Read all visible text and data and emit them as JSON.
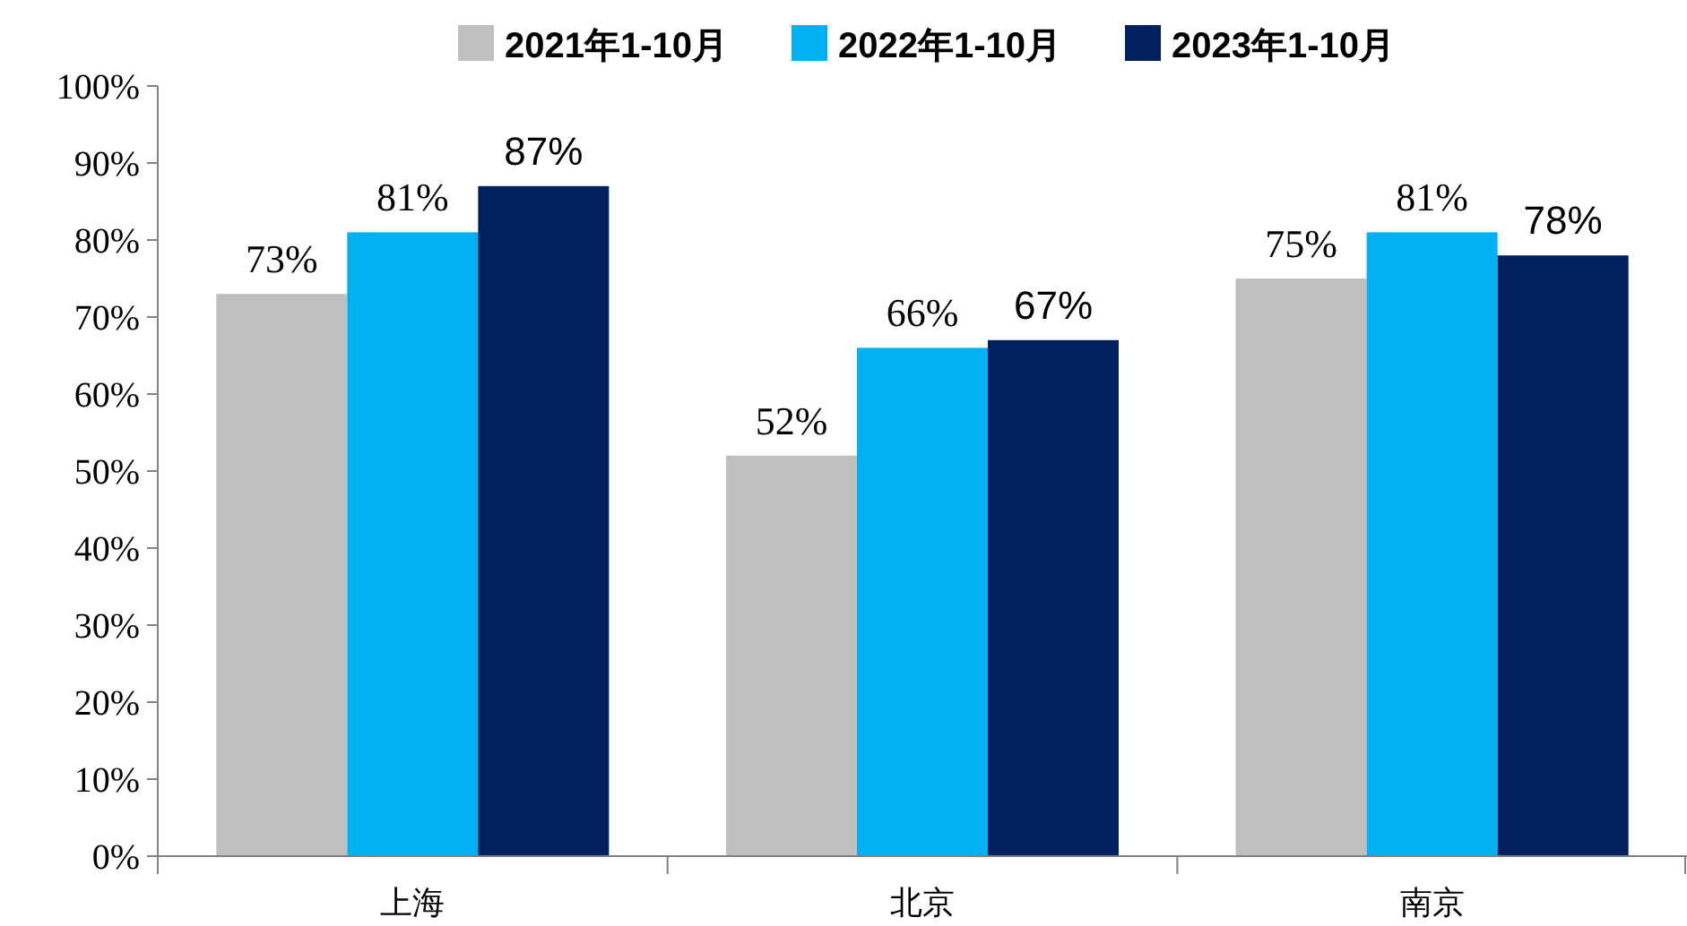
{
  "chart_data": {
    "type": "bar",
    "categories": [
      "上海",
      "北京",
      "南京"
    ],
    "series": [
      {
        "name": "2021年1-10月",
        "color": "#bfbfbf",
        "values": [
          73,
          52,
          75
        ]
      },
      {
        "name": "2022年1-10月",
        "color": "#00b0f0",
        "values": [
          81,
          66,
          81
        ]
      },
      {
        "name": "2023年1-10月",
        "color": "#002060",
        "values": [
          87,
          67,
          78
        ]
      }
    ],
    "ylim": [
      0,
      100
    ],
    "yticks": [
      {
        "value": 0,
        "label": "0%"
      },
      {
        "value": 10,
        "label": "10%"
      },
      {
        "value": 20,
        "label": "20%"
      },
      {
        "value": 30,
        "label": "30%"
      },
      {
        "value": 40,
        "label": "40%"
      },
      {
        "value": 50,
        "label": "50%"
      },
      {
        "value": 60,
        "label": "60%"
      },
      {
        "value": 70,
        "label": "70%"
      },
      {
        "value": 80,
        "label": "80%"
      },
      {
        "value": 90,
        "label": "90%"
      },
      {
        "value": 100,
        "label": "100%"
      }
    ],
    "value_labels": [
      [
        "73%",
        "52%",
        "75%"
      ],
      [
        "81%",
        "66%",
        "81%"
      ],
      [
        "87%",
        "67%",
        "78%"
      ]
    ],
    "grid": false,
    "legend": "top"
  }
}
